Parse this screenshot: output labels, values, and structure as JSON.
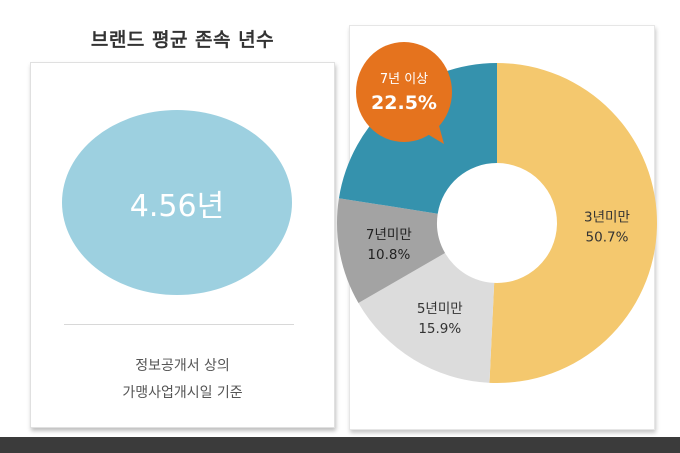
{
  "left": {
    "title": "브랜드 평균 존속 년수",
    "value": "4.56년",
    "note_line1": "정보공개서 상의",
    "note_line2": "가맹사업개시일 기준"
  },
  "chart_data": {
    "type": "pie",
    "categories": [
      "3년미만",
      "5년미만",
      "7년미만",
      "7년 이상"
    ],
    "values": [
      50.7,
      15.9,
      10.8,
      22.5
    ],
    "value_labels": [
      "50.7%",
      "15.9%",
      "10.8%",
      "22.5%"
    ],
    "colors": [
      "#f4c86e",
      "#dcdcdc",
      "#a3a3a3",
      "#3592ad"
    ],
    "callout_color": "#e5731e",
    "donut": true,
    "start": "12 o'clock",
    "direction": "clockwise"
  }
}
